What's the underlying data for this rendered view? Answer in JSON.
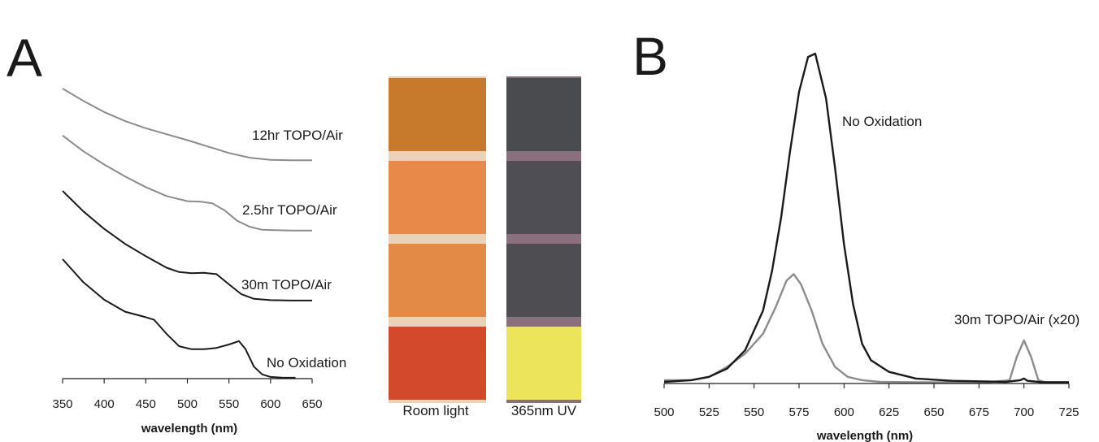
{
  "panels": {
    "a_letter": "A",
    "b_letter": "B"
  },
  "photo": {
    "room_label": "Room light",
    "uv_label": "365nm UV",
    "room_colors": [
      "#c77a2c",
      "#e8894a",
      "#e38a46",
      "#d24a2b"
    ],
    "uv_colors": [
      "#4a4b4f",
      "#4f4e54",
      "#4d4d52",
      "#ece45a"
    ],
    "separator_color": "#e9d3b8",
    "uv_separator_color": "#8a6f7c"
  },
  "chart_data": [
    {
      "type": "line",
      "panel": "A",
      "xlabel": "wavelength (nm)",
      "ylabel": "",
      "xlim": [
        350,
        650
      ],
      "xticks": [
        350,
        400,
        450,
        500,
        550,
        600,
        650
      ],
      "yaxis": "hidden, curves vertically offset",
      "series": [
        {
          "name": "12hr TOPO/Air",
          "color": "#8c8c8c",
          "x": [
            350,
            375,
            400,
            425,
            450,
            475,
            500,
            525,
            550,
            575,
            600,
            625,
            650
          ],
          "y": [
            3.4,
            3.255,
            3.125,
            3.02,
            2.935,
            2.865,
            2.795,
            2.72,
            2.645,
            2.59,
            2.565,
            2.56,
            2.56
          ]
        },
        {
          "name": "2.5hr TOPO/Air",
          "color": "#8c8c8c",
          "x": [
            350,
            375,
            400,
            425,
            450,
            475,
            500,
            515,
            530,
            545,
            560,
            575,
            590,
            605,
            625,
            650
          ],
          "y": [
            2.85,
            2.665,
            2.51,
            2.37,
            2.245,
            2.14,
            2.08,
            2.075,
            2.055,
            1.97,
            1.85,
            1.78,
            1.745,
            1.74,
            1.735,
            1.735
          ]
        },
        {
          "name": "30m TOPO/Air",
          "color": "#1a1a1a",
          "x": [
            350,
            375,
            400,
            425,
            450,
            475,
            490,
            505,
            520,
            535,
            550,
            565,
            580,
            600,
            625,
            650
          ],
          "y": [
            2.2,
            1.96,
            1.755,
            1.58,
            1.435,
            1.3,
            1.25,
            1.235,
            1.24,
            1.225,
            1.105,
            0.99,
            0.935,
            0.92,
            0.915,
            0.915
          ]
        },
        {
          "name": "No Oxidation",
          "color": "#1a1a1a",
          "x": [
            350,
            375,
            400,
            425,
            450,
            460,
            475,
            490,
            505,
            520,
            535,
            550,
            562,
            570,
            580,
            590,
            600,
            615,
            630
          ],
          "y": [
            1.4,
            1.13,
            0.925,
            0.785,
            0.72,
            0.69,
            0.525,
            0.38,
            0.345,
            0.345,
            0.36,
            0.4,
            0.44,
            0.345,
            0.14,
            0.05,
            0.02,
            0.01,
            0.01
          ]
        }
      ]
    },
    {
      "type": "line",
      "panel": "B",
      "xlabel": "wavelength (nm)",
      "ylabel": "",
      "xlim": [
        500,
        725
      ],
      "xticks": [
        500,
        525,
        550,
        575,
        600,
        625,
        650,
        675,
        700,
        725
      ],
      "ylim": [
        0,
        1
      ],
      "yaxis": "hidden",
      "series": [
        {
          "name": "No Oxidation",
          "color": "#1a1a1a",
          "x": [
            500,
            515,
            525,
            535,
            545,
            555,
            560,
            565,
            570,
            575,
            580,
            584,
            590,
            595,
            600,
            605,
            610,
            615,
            625,
            640,
            660,
            690,
            698,
            700,
            702,
            710,
            725
          ],
          "y": [
            0.005,
            0.01,
            0.02,
            0.045,
            0.1,
            0.22,
            0.34,
            0.5,
            0.7,
            0.88,
            0.985,
            0.995,
            0.86,
            0.65,
            0.42,
            0.24,
            0.12,
            0.07,
            0.035,
            0.015,
            0.008,
            0.005,
            0.01,
            0.015,
            0.008,
            0.004,
            0.004
          ]
        },
        {
          "name": "30m TOPO/Air (x20)",
          "color": "#8c8c8c",
          "x": [
            500,
            515,
            525,
            535,
            545,
            555,
            562,
            568,
            572,
            576,
            582,
            588,
            595,
            602,
            610,
            620,
            640,
            660,
            680,
            692,
            696,
            700,
            704,
            708,
            712,
            725
          ],
          "y": [
            0.01,
            0.01,
            0.02,
            0.05,
            0.09,
            0.15,
            0.23,
            0.31,
            0.33,
            0.3,
            0.22,
            0.12,
            0.05,
            0.02,
            0.01,
            0.005,
            0.004,
            0.004,
            0.004,
            0.01,
            0.08,
            0.13,
            0.08,
            0.01,
            0.004,
            0.004
          ]
        }
      ]
    }
  ]
}
